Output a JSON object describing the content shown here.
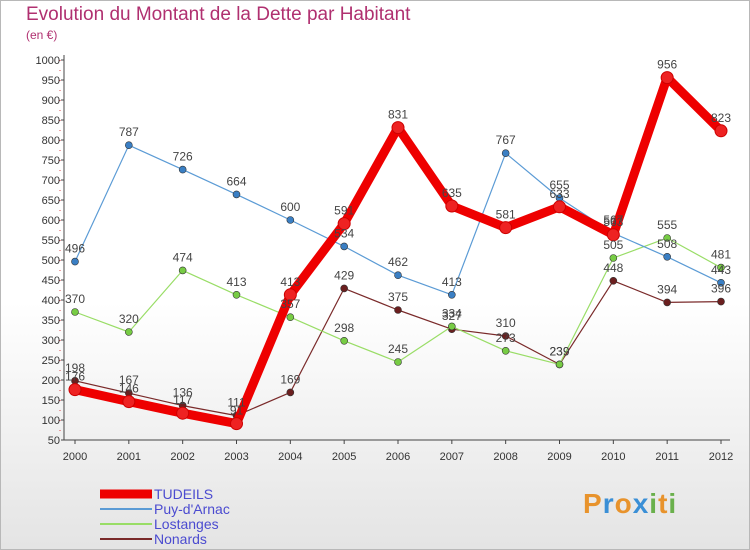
{
  "title": "Evolution du Montant de la Dette par Habitant",
  "unit_label": "(en €)",
  "logo": {
    "letters": [
      "P",
      "r",
      "o",
      "x",
      "i",
      "t",
      "i"
    ],
    "colors": [
      "#e8932c",
      "#3a8fd6",
      "#e8932c",
      "#3a8fd6",
      "#6ab04c",
      "#e8932c",
      "#6ab04c"
    ]
  },
  "chart_data": {
    "type": "line",
    "categories": [
      "2000",
      "2001",
      "2002",
      "2003",
      "2004",
      "2005",
      "2006",
      "2007",
      "2008",
      "2009",
      "2010",
      "2011",
      "2012"
    ],
    "ylim": [
      50,
      1000
    ],
    "yticks": [
      50,
      100,
      150,
      200,
      250,
      300,
      350,
      400,
      450,
      500,
      550,
      600,
      650,
      700,
      750,
      800,
      850,
      900,
      950,
      1000
    ],
    "grid": false,
    "legend_position": "bottom-left",
    "series": [
      {
        "name": "TUDEILS",
        "color": "#ee0000",
        "marker": "#ee2222",
        "width": 9,
        "radius": 6,
        "values": [
          176,
          146,
          117,
          91,
          413,
          591,
          831,
          635,
          581,
          633,
          563,
          956,
          823
        ],
        "labels": [
          "176",
          "146",
          "117",
          "91",
          "413",
          "591",
          "831",
          "635",
          "581",
          "633",
          "563",
          "956",
          "823"
        ]
      },
      {
        "name": "Puy-d'Arnac",
        "color": "#5b9bd5",
        "marker": "#3a7fc4",
        "width": 1.2,
        "radius": 3.5,
        "values": [
          496,
          787,
          726,
          664,
          600,
          534,
          462,
          413,
          767,
          655,
          567,
          508,
          443
        ],
        "labels": [
          "496",
          "787",
          "726",
          "664",
          "600",
          "534",
          "462",
          "413",
          "767",
          "655",
          "567",
          "508",
          "443"
        ]
      },
      {
        "name": "Lostanges",
        "color": "#99dd66",
        "marker": "#77cc44",
        "width": 1.2,
        "radius": 3.5,
        "values": [
          370,
          320,
          474,
          413,
          357,
          298,
          245,
          334,
          273,
          239,
          505,
          555,
          481
        ],
        "labels": [
          "370",
          "320",
          "474",
          "413",
          "357",
          "298",
          "245",
          "334",
          "273",
          "239",
          "505",
          "555",
          "481"
        ]
      },
      {
        "name": "Nonards",
        "color": "#7a2a2a",
        "marker": "#6b1f1f",
        "width": 1.2,
        "radius": 3.5,
        "values": [
          198,
          167,
          136,
          111,
          169,
          429,
          375,
          327,
          310,
          239,
          448,
          394,
          396
        ],
        "labels": [
          "198",
          "167",
          "136",
          "111",
          "169",
          "429",
          "375",
          "327",
          "310",
          "239",
          "448",
          "394",
          "396"
        ]
      }
    ]
  }
}
